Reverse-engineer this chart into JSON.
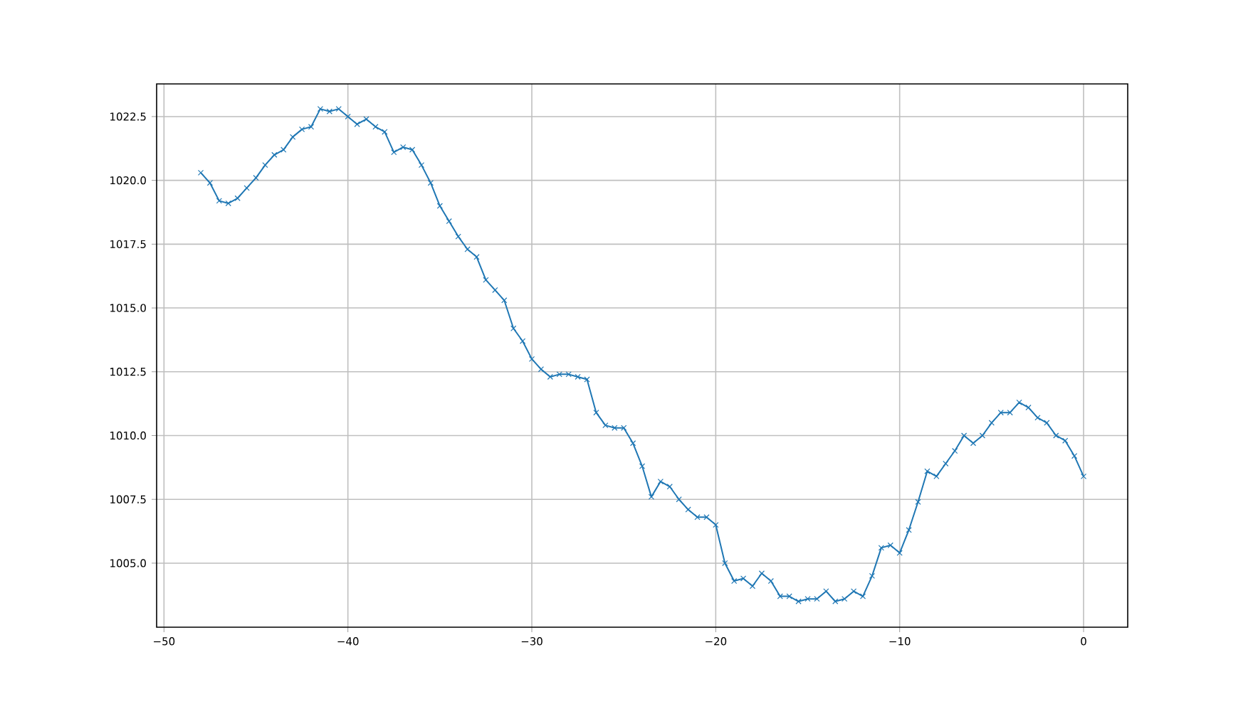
{
  "chart_data": {
    "type": "line",
    "color": "#1f77b4",
    "marker": "cross",
    "line_style": "solid",
    "grid": true,
    "x": [
      -48,
      -47.5,
      -47,
      -46.5,
      -46,
      -45.5,
      -45,
      -44.5,
      -44,
      -43.5,
      -43,
      -42.5,
      -42,
      -41.5,
      -41,
      -40.5,
      -40,
      -39.5,
      -39,
      -38.5,
      -38,
      -37.5,
      -37,
      -36.5,
      -36,
      -35.5,
      -35,
      -34.5,
      -34,
      -33.5,
      -33,
      -32.5,
      -32,
      -31.5,
      -31,
      -30.5,
      -30,
      -29.5,
      -29,
      -28.5,
      -28,
      -27.5,
      -27,
      -26.5,
      -26,
      -25.5,
      -25,
      -24.5,
      -24,
      -23.5,
      -23,
      -22.5,
      -22,
      -21.5,
      -21,
      -20.5,
      -20,
      -19.5,
      -19,
      -18.5,
      -18,
      -17.5,
      -17,
      -16.5,
      -16,
      -15.5,
      -15,
      -14.5,
      -14,
      -13.5,
      -13,
      -12.5,
      -12,
      -11.5,
      -11,
      -10.5,
      -10,
      -9.5,
      -9,
      -8.5,
      -8,
      -7.5,
      -7,
      -6.5,
      -6,
      -5.5,
      -5,
      -4.5,
      -4,
      -3.5,
      -3,
      -2.5,
      -2,
      -1.5,
      -1,
      -0.5,
      0
    ],
    "values": [
      1020.3,
      1019.9,
      1019.2,
      1019.1,
      1019.3,
      1019.7,
      1020.1,
      1020.6,
      1021.0,
      1021.2,
      1021.7,
      1022.0,
      1022.1,
      1022.8,
      1022.7,
      1022.8,
      1022.5,
      1022.2,
      1022.4,
      1022.1,
      1021.9,
      1021.1,
      1021.3,
      1021.2,
      1020.6,
      1019.9,
      1019.0,
      1018.4,
      1017.8,
      1017.3,
      1017.0,
      1016.1,
      1015.7,
      1015.3,
      1014.2,
      1013.7,
      1013.0,
      1012.6,
      1012.3,
      1012.4,
      1012.4,
      1012.3,
      1012.2,
      1010.9,
      1010.4,
      1010.3,
      1010.3,
      1009.7,
      1008.8,
      1007.6,
      1008.2,
      1008.0,
      1007.5,
      1007.1,
      1006.8,
      1006.8,
      1006.5,
      1005.0,
      1004.3,
      1004.4,
      1004.1,
      1004.6,
      1004.3,
      1003.7,
      1003.7,
      1003.5,
      1003.6,
      1003.6,
      1003.9,
      1003.5,
      1003.6,
      1003.9,
      1003.7,
      1004.5,
      1005.6,
      1005.7,
      1005.4,
      1006.3,
      1007.4,
      1008.6,
      1008.4,
      1008.9,
      1009.4,
      1010.0,
      1009.7,
      1010.0,
      1010.5,
      1010.9,
      1010.9,
      1011.3,
      1011.1,
      1010.7,
      1010.5,
      1010.0,
      1009.8,
      1009.2,
      1008.4
    ],
    "xlim": [
      -50.4,
      2.4
    ],
    "ylim": [
      1002.49,
      1023.78
    ],
    "xticks": [
      {
        "value": -50,
        "label": "−50"
      },
      {
        "value": -40,
        "label": "−40"
      },
      {
        "value": -30,
        "label": "−30"
      },
      {
        "value": -20,
        "label": "−20"
      },
      {
        "value": -10,
        "label": "−10"
      },
      {
        "value": 0,
        "label": "0"
      }
    ],
    "yticks": [
      {
        "value": 1005.0,
        "label": "1005.0"
      },
      {
        "value": 1007.5,
        "label": "1007.5"
      },
      {
        "value": 1010.0,
        "label": "1010.0"
      },
      {
        "value": 1012.5,
        "label": "1012.5"
      },
      {
        "value": 1015.0,
        "label": "1015.0"
      },
      {
        "value": 1017.5,
        "label": "1017.5"
      },
      {
        "value": 1020.0,
        "label": "1020.0"
      },
      {
        "value": 1022.5,
        "label": "1022.5"
      }
    ]
  }
}
